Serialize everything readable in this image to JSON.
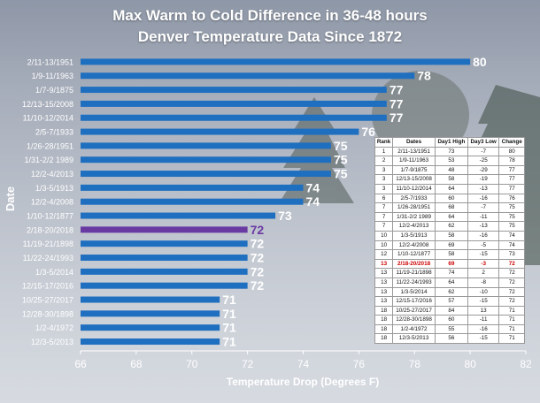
{
  "title_line1": "Max Warm to Cold Difference in 36-48 hours",
  "title_line2": "Denver Temperature Data Since 1872",
  "colors": {
    "bar": "#1f6fc0",
    "highlight_bar": "#6a3aa3",
    "value_label": "#ffffff",
    "highlight_label": "#6a3aa3",
    "table_highlight": "#cc0000"
  },
  "chart_data": {
    "type": "bar",
    "orientation": "horizontal",
    "xlabel": "Temperature Drop (Degrees F)",
    "ylabel": "Date",
    "xlim": [
      66,
      82
    ],
    "x_ticks": [
      66,
      68,
      70,
      72,
      74,
      76,
      78,
      80,
      82
    ],
    "grid": false,
    "highlight_category": "2/18-20/2018",
    "categories": [
      "2/11-13/1951",
      "1/9-11/1963",
      "1/7-9/1875",
      "12/13-15/2008",
      "11/10-12/2014",
      "2/5-7/1933",
      "1/26-28/1951",
      "1/31-2/2 1989",
      "12/2-4/2013",
      "1/3-5/1913",
      "12/2-4/2008",
      "1/10-12/1877",
      "2/18-20/2018",
      "11/19-21/1898",
      "11/22-24/1993",
      "1/3-5/2014",
      "12/15-17/2016",
      "10/25-27/2017",
      "12/28-30/1898",
      "1/2-4/1972",
      "12/3-5/2013"
    ],
    "values": [
      80,
      78,
      77,
      77,
      77,
      76,
      75,
      75,
      75,
      74,
      74,
      73,
      72,
      72,
      72,
      72,
      72,
      71,
      71,
      71,
      71
    ]
  },
  "rank_table": {
    "headers": [
      "Rank",
      "Dates",
      "Day1 High",
      "Day3 Low",
      "Change"
    ],
    "highlight_row": 12,
    "rows": [
      [
        "1",
        "2/11-13/1951",
        "73",
        "-7",
        "80"
      ],
      [
        "2",
        "1/9-11/1963",
        "53",
        "-25",
        "78"
      ],
      [
        "3",
        "1/7-9/1875",
        "48",
        "-29",
        "77"
      ],
      [
        "3",
        "12/13-15/2008",
        "58",
        "-19",
        "77"
      ],
      [
        "3",
        "11/10-12/2014",
        "64",
        "-13",
        "77"
      ],
      [
        "6",
        "2/5-7/1933",
        "60",
        "-16",
        "76"
      ],
      [
        "7",
        "1/26-28/1951",
        "68",
        "-7",
        "75"
      ],
      [
        "7",
        "1/31-2/2 1989",
        "64",
        "-11",
        "75"
      ],
      [
        "7",
        "12/2-4/2013",
        "62",
        "-13",
        "75"
      ],
      [
        "10",
        "1/3-5/1913",
        "58",
        "-16",
        "74"
      ],
      [
        "10",
        "12/2-4/2008",
        "69",
        "-5",
        "74"
      ],
      [
        "12",
        "1/10-12/1877",
        "58",
        "-15",
        "73"
      ],
      [
        "13",
        "2/18-20/2018",
        "69",
        "-3",
        "72"
      ],
      [
        "13",
        "11/19-21/1898",
        "74",
        "2",
        "72"
      ],
      [
        "13",
        "11/22-24/1993",
        "64",
        "-8",
        "72"
      ],
      [
        "13",
        "1/3-5/2014",
        "62",
        "-10",
        "72"
      ],
      [
        "13",
        "12/15-17/2016",
        "57",
        "-15",
        "72"
      ],
      [
        "18",
        "10/25-27/2017",
        "84",
        "13",
        "71"
      ],
      [
        "18",
        "12/28-30/1898",
        "60",
        "-11",
        "71"
      ],
      [
        "18",
        "1/2-4/1972",
        "55",
        "-16",
        "71"
      ],
      [
        "18",
        "12/3-5/2013",
        "56",
        "-15",
        "71"
      ]
    ]
  }
}
